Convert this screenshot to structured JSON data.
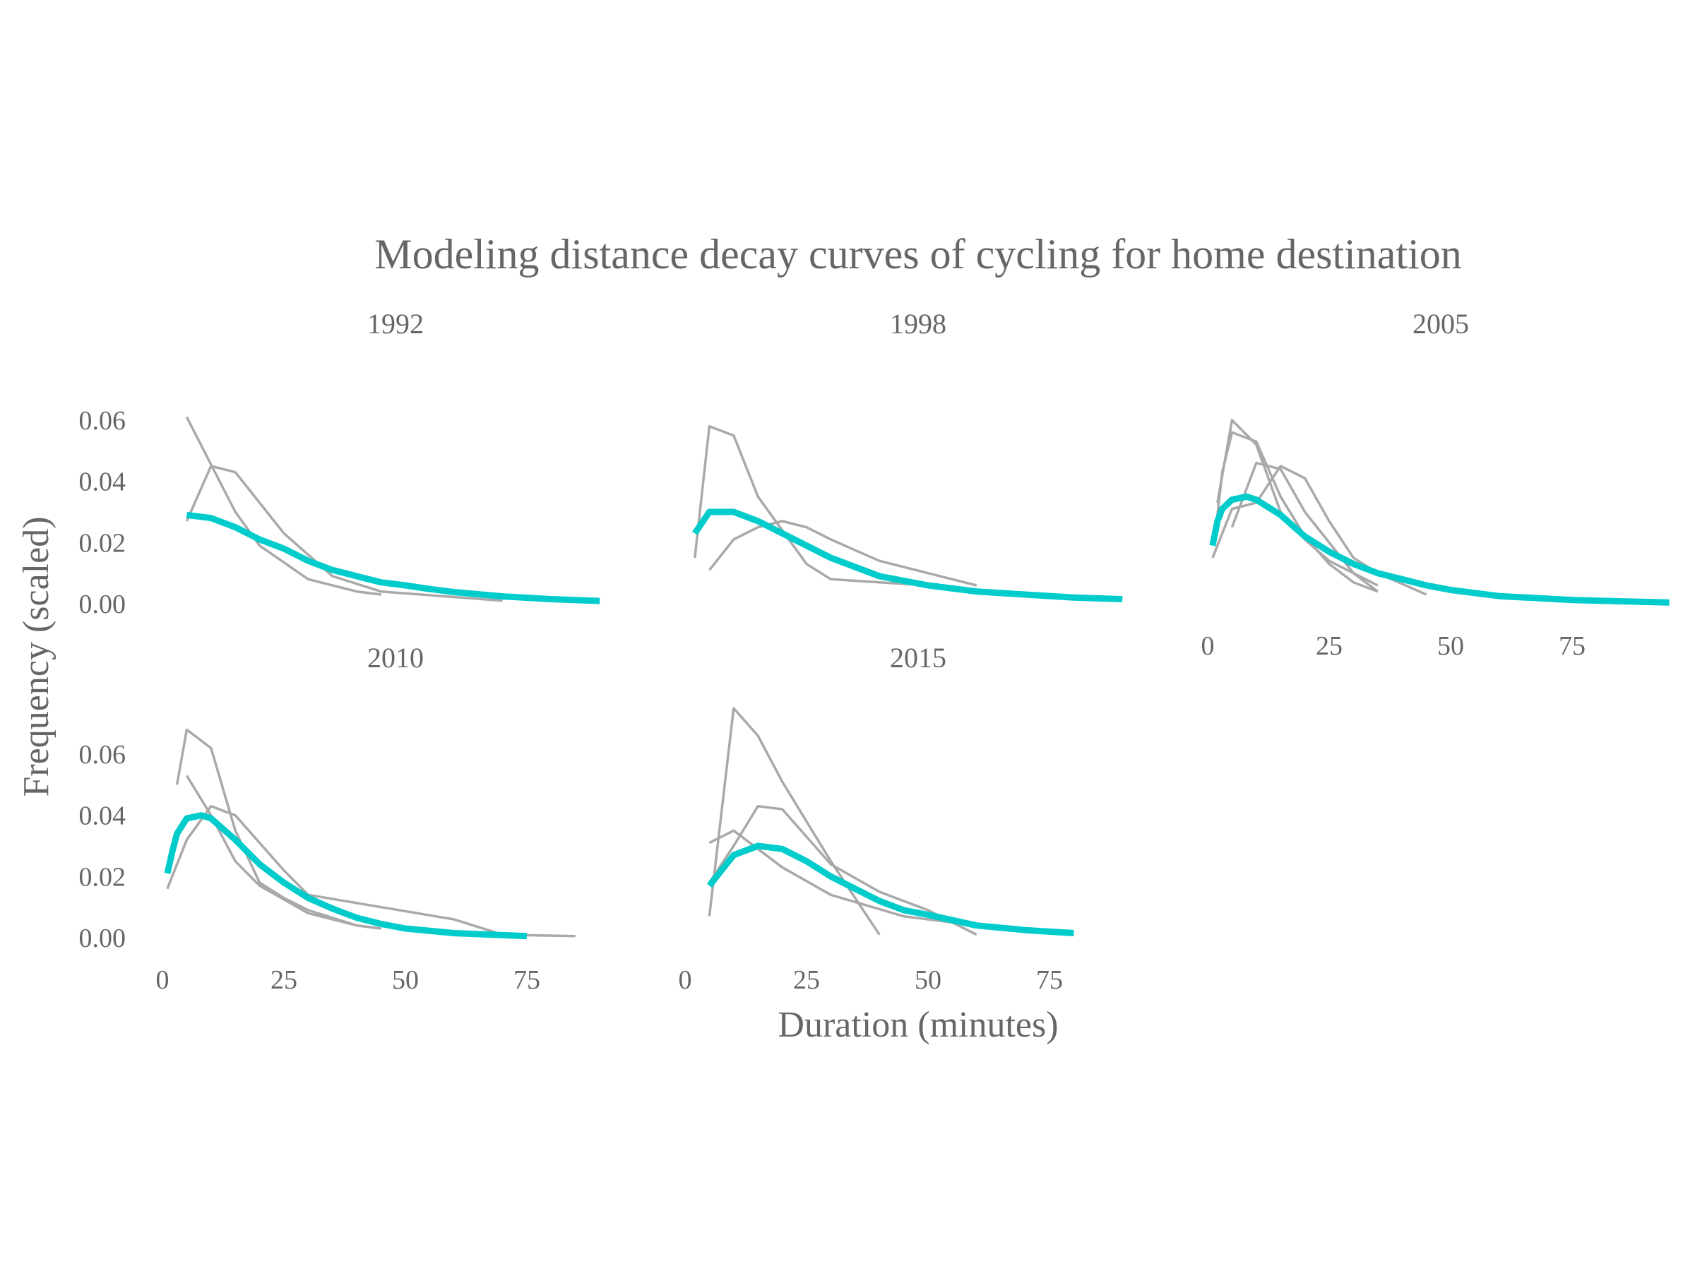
{
  "chart_data": {
    "type": "line",
    "title": "Modeling distance decay curves of cycling for home destination",
    "xlabel": "Duration (minutes)",
    "ylabel": "Frequency (scaled)",
    "xlim": [
      0,
      95
    ],
    "ylim": [
      0,
      0.06
    ],
    "x_ticks": [
      0,
      25,
      50,
      75
    ],
    "y_ticks": [
      "0.00",
      "0.02",
      "0.04",
      "0.06"
    ],
    "colors": {
      "model": "#00cccc",
      "observed": "#a9a9a9",
      "text": "#666666"
    },
    "panels": [
      {
        "title": "1992",
        "observed": [
          [
            [
              5,
              0.061
            ],
            [
              15,
              0.03
            ],
            [
              20,
              0.019
            ],
            [
              30,
              0.008
            ],
            [
              40,
              0.004
            ],
            [
              45,
              0.003
            ]
          ],
          [
            [
              5,
              0.027
            ],
            [
              10,
              0.045
            ],
            [
              15,
              0.043
            ],
            [
              20,
              0.033
            ],
            [
              25,
              0.023
            ],
            [
              35,
              0.009
            ],
            [
              45,
              0.004
            ],
            [
              70,
              0.001
            ]
          ]
        ],
        "model": [
          [
            5,
            0.029
          ],
          [
            10,
            0.028
          ],
          [
            15,
            0.025
          ],
          [
            20,
            0.021
          ],
          [
            25,
            0.018
          ],
          [
            30,
            0.014
          ],
          [
            35,
            0.011
          ],
          [
            40,
            0.009
          ],
          [
            45,
            0.007
          ],
          [
            50,
            0.006
          ],
          [
            55,
            0.0048
          ],
          [
            60,
            0.0038
          ],
          [
            70,
            0.0024
          ],
          [
            80,
            0.0015
          ],
          [
            90,
            0.0009
          ]
        ]
      },
      {
        "title": "1998",
        "observed": [
          [
            [
              2,
              0.015
            ],
            [
              5,
              0.058
            ],
            [
              10,
              0.055
            ],
            [
              15,
              0.035
            ],
            [
              20,
              0.024
            ],
            [
              25,
              0.013
            ],
            [
              30,
              0.008
            ],
            [
              40,
              0.007
            ],
            [
              50,
              0.006
            ],
            [
              60,
              0.004
            ],
            [
              70,
              0.003
            ],
            [
              80,
              0.002
            ]
          ],
          [
            [
              5,
              0.011
            ],
            [
              10,
              0.021
            ],
            [
              15,
              0.025
            ],
            [
              20,
              0.027
            ],
            [
              25,
              0.025
            ],
            [
              30,
              0.021
            ],
            [
              40,
              0.014
            ],
            [
              50,
              0.01
            ],
            [
              60,
              0.006
            ]
          ]
        ],
        "model": [
          [
            2,
            0.023
          ],
          [
            5,
            0.03
          ],
          [
            10,
            0.03
          ],
          [
            15,
            0.027
          ],
          [
            20,
            0.023
          ],
          [
            25,
            0.019
          ],
          [
            30,
            0.015
          ],
          [
            35,
            0.012
          ],
          [
            40,
            0.009
          ],
          [
            50,
            0.006
          ],
          [
            60,
            0.004
          ],
          [
            70,
            0.003
          ],
          [
            80,
            0.002
          ],
          [
            90,
            0.0015
          ]
        ]
      },
      {
        "title": "2005",
        "observed": [
          [
            [
              2,
              0.029
            ],
            [
              3,
              0.043
            ],
            [
              5,
              0.056
            ],
            [
              10,
              0.053
            ],
            [
              15,
              0.035
            ],
            [
              20,
              0.022
            ],
            [
              25,
              0.013
            ],
            [
              30,
              0.007
            ],
            [
              35,
              0.004
            ]
          ],
          [
            [
              2,
              0.033
            ],
            [
              5,
              0.06
            ],
            [
              10,
              0.052
            ],
            [
              15,
              0.03
            ],
            [
              20,
              0.021
            ],
            [
              25,
              0.014
            ],
            [
              35,
              0.006
            ]
          ],
          [
            [
              5,
              0.025
            ],
            [
              10,
              0.046
            ],
            [
              15,
              0.044
            ],
            [
              20,
              0.03
            ],
            [
              30,
              0.01
            ],
            [
              35,
              0.004
            ]
          ],
          [
            [
              1,
              0.015
            ],
            [
              5,
              0.031
            ],
            [
              10,
              0.033
            ],
            [
              15,
              0.045
            ],
            [
              20,
              0.041
            ],
            [
              25,
              0.027
            ],
            [
              30,
              0.015
            ],
            [
              35,
              0.01
            ],
            [
              45,
              0.003
            ]
          ]
        ],
        "model": [
          [
            1,
            0.019
          ],
          [
            2,
            0.027
          ],
          [
            3,
            0.031
          ],
          [
            5,
            0.034
          ],
          [
            8,
            0.035
          ],
          [
            10,
            0.034
          ],
          [
            15,
            0.029
          ],
          [
            20,
            0.022
          ],
          [
            25,
            0.017
          ],
          [
            30,
            0.013
          ],
          [
            35,
            0.01
          ],
          [
            40,
            0.008
          ],
          [
            45,
            0.006
          ],
          [
            50,
            0.0045
          ],
          [
            60,
            0.0025
          ],
          [
            75,
            0.0012
          ],
          [
            95,
            0.0004
          ]
        ]
      },
      {
        "title": "2010",
        "observed": [
          [
            [
              3,
              0.05
            ],
            [
              5,
              0.068
            ],
            [
              10,
              0.062
            ],
            [
              15,
              0.035
            ],
            [
              20,
              0.018
            ],
            [
              25,
              0.013
            ],
            [
              30,
              0.009
            ],
            [
              40,
              0.004
            ],
            [
              45,
              0.003
            ]
          ],
          [
            [
              5,
              0.053
            ],
            [
              10,
              0.04
            ],
            [
              15,
              0.025
            ],
            [
              20,
              0.017
            ],
            [
              30,
              0.008
            ],
            [
              40,
              0.004
            ]
          ],
          [
            [
              1,
              0.016
            ],
            [
              5,
              0.032
            ],
            [
              10,
              0.043
            ],
            [
              15,
              0.04
            ],
            [
              20,
              0.031
            ],
            [
              25,
              0.022
            ],
            [
              30,
              0.014
            ],
            [
              60,
              0.006
            ],
            [
              70,
              0.001
            ],
            [
              85,
              0.0005
            ]
          ]
        ],
        "model": [
          [
            1,
            0.021
          ],
          [
            2,
            0.028
          ],
          [
            3,
            0.034
          ],
          [
            5,
            0.039
          ],
          [
            8,
            0.04
          ],
          [
            10,
            0.039
          ],
          [
            15,
            0.032
          ],
          [
            20,
            0.024
          ],
          [
            25,
            0.018
          ],
          [
            30,
            0.013
          ],
          [
            35,
            0.0095
          ],
          [
            40,
            0.0065
          ],
          [
            45,
            0.0045
          ],
          [
            50,
            0.003
          ],
          [
            60,
            0.0015
          ],
          [
            75,
            0.0005
          ]
        ]
      },
      {
        "title": "2015",
        "observed": [
          [
            [
              5,
              0.007
            ],
            [
              10,
              0.075
            ],
            [
              15,
              0.066
            ],
            [
              20,
              0.051
            ],
            [
              30,
              0.025
            ],
            [
              40,
              0.001
            ]
          ],
          [
            [
              5,
              0.031
            ],
            [
              10,
              0.035
            ],
            [
              15,
              0.029
            ],
            [
              20,
              0.023
            ],
            [
              30,
              0.014
            ],
            [
              45,
              0.007
            ],
            [
              60,
              0.004
            ],
            [
              80,
              0.001
            ]
          ],
          [
            [
              5,
              0.018
            ],
            [
              10,
              0.03
            ],
            [
              15,
              0.043
            ],
            [
              20,
              0.042
            ],
            [
              30,
              0.024
            ],
            [
              40,
              0.015
            ],
            [
              50,
              0.009
            ],
            [
              60,
              0.001
            ]
          ]
        ],
        "model": [
          [
            5,
            0.017
          ],
          [
            10,
            0.027
          ],
          [
            15,
            0.03
          ],
          [
            20,
            0.029
          ],
          [
            25,
            0.025
          ],
          [
            30,
            0.02
          ],
          [
            35,
            0.016
          ],
          [
            40,
            0.012
          ],
          [
            45,
            0.009
          ],
          [
            50,
            0.0075
          ],
          [
            60,
            0.004
          ],
          [
            70,
            0.0025
          ],
          [
            80,
            0.0015
          ]
        ]
      }
    ]
  }
}
